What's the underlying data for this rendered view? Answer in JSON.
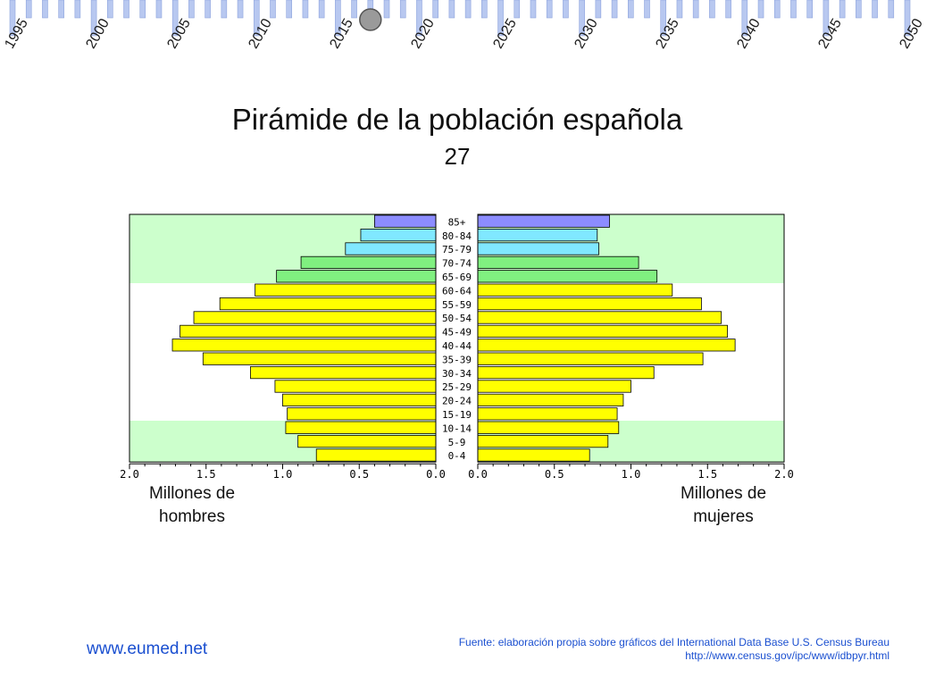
{
  "timeline": {
    "years": [
      "1995",
      "2000",
      "2005",
      "2010",
      "2015",
      "2020",
      "2025",
      "2030",
      "2035",
      "2040",
      "2045",
      "2050"
    ],
    "start_year": 1995,
    "end_year": 2050,
    "current_year": 2017,
    "tick_color": "#b8c8f0",
    "handle_color": "#9a9a9a"
  },
  "title": "Pirámide de la población española",
  "subtitle": "27",
  "chart_data": {
    "type": "bar",
    "orientation": "horizontal-pyramid",
    "categories": [
      "85+",
      "80-84",
      "75-79",
      "70-74",
      "65-69",
      "60-64",
      "55-59",
      "50-54",
      "45-49",
      "40-44",
      "35-39",
      "30-34",
      "25-29",
      "20-24",
      "15-19",
      "10-14",
      "5-9",
      "0-4"
    ],
    "series": [
      {
        "name": "Millones de hombres",
        "values": [
          0.4,
          0.49,
          0.59,
          0.88,
          1.04,
          1.18,
          1.41,
          1.58,
          1.67,
          1.72,
          1.52,
          1.21,
          1.05,
          1.0,
          0.97,
          0.98,
          0.9,
          0.78
        ]
      },
      {
        "name": "Millones de mujeres",
        "values": [
          0.86,
          0.78,
          0.79,
          1.05,
          1.17,
          1.27,
          1.46,
          1.59,
          1.63,
          1.68,
          1.47,
          1.15,
          1.0,
          0.95,
          0.91,
          0.92,
          0.85,
          0.73
        ]
      }
    ],
    "xlim": [
      0,
      2.0
    ],
    "ticks": [
      "2.0",
      "1.5",
      "1.0",
      "0.5",
      "0.0"
    ],
    "ticks_right": [
      "0.0",
      "0.5",
      "1.0",
      "1.5",
      "2.0"
    ],
    "xlabel_left": "Millones de hombres",
    "xlabel_right": "Millones de mujeres",
    "colors": {
      "85+": "#8c8cff",
      "80-84": "#80e8ff",
      "75-79": "#80e8ff",
      "70-74": "#80f080",
      "65-69": "#80f080",
      "default": "#ffff00",
      "band_light_green": "#ccffcc"
    }
  },
  "footer": {
    "site": "www.eumed.net",
    "source_line1": "Fuente: elaboración propia sobre gráficos del International Data Base U.S. Census Bureau",
    "source_line2": "http://www.census.gov/ipc/www/idbpyr.html"
  }
}
